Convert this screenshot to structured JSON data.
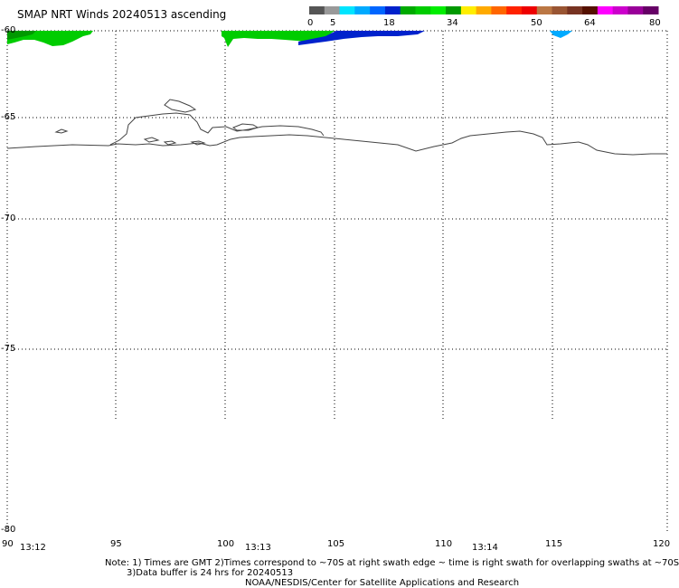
{
  "title": "SMAP NRT Winds 20240513 ascending",
  "colorbar": {
    "ticks": [
      "0",
      "5",
      "18",
      "34",
      "50",
      "64",
      "80"
    ],
    "colors": [
      "#555555",
      "#999999",
      "#00e5ff",
      "#00aaff",
      "#0066ff",
      "#0022cc",
      "#00aa00",
      "#00cc00",
      "#00ee00",
      "#009900",
      "#ffee00",
      "#ffaa00",
      "#ff6600",
      "#ff2200",
      "#ee0000",
      "#bb7744",
      "#995533",
      "#773322",
      "#551100",
      "#ff00ff",
      "#cc00cc",
      "#990099",
      "#660066"
    ]
  },
  "map": {
    "lat_labels": [
      "-60",
      "-65",
      "-70",
      "-75",
      "-80"
    ],
    "lon_labels": [
      "90",
      "95",
      "100",
      "105",
      "110",
      "115",
      "120"
    ],
    "time_labels": [
      "13:12",
      "13:13",
      "13:14"
    ],
    "lat_range": [
      -80,
      -60
    ],
    "lon_range": [
      90,
      120
    ],
    "grid": "dotted",
    "swath_colors": {
      "green": "#00cc00",
      "dark_green": "#009900",
      "blue": "#0022cc",
      "cyan": "#00aaff"
    }
  },
  "notes": {
    "line1": "Note: 1) Times are GMT 2)Times correspond to ~70S at right swath edge ~ time is right swath for overlapping swaths at ~70S",
    "line2": "3)Data buffer is 24 hrs for 20240513",
    "line3": "NOAA/NESDIS/Center for Satellite Applications and Research"
  }
}
